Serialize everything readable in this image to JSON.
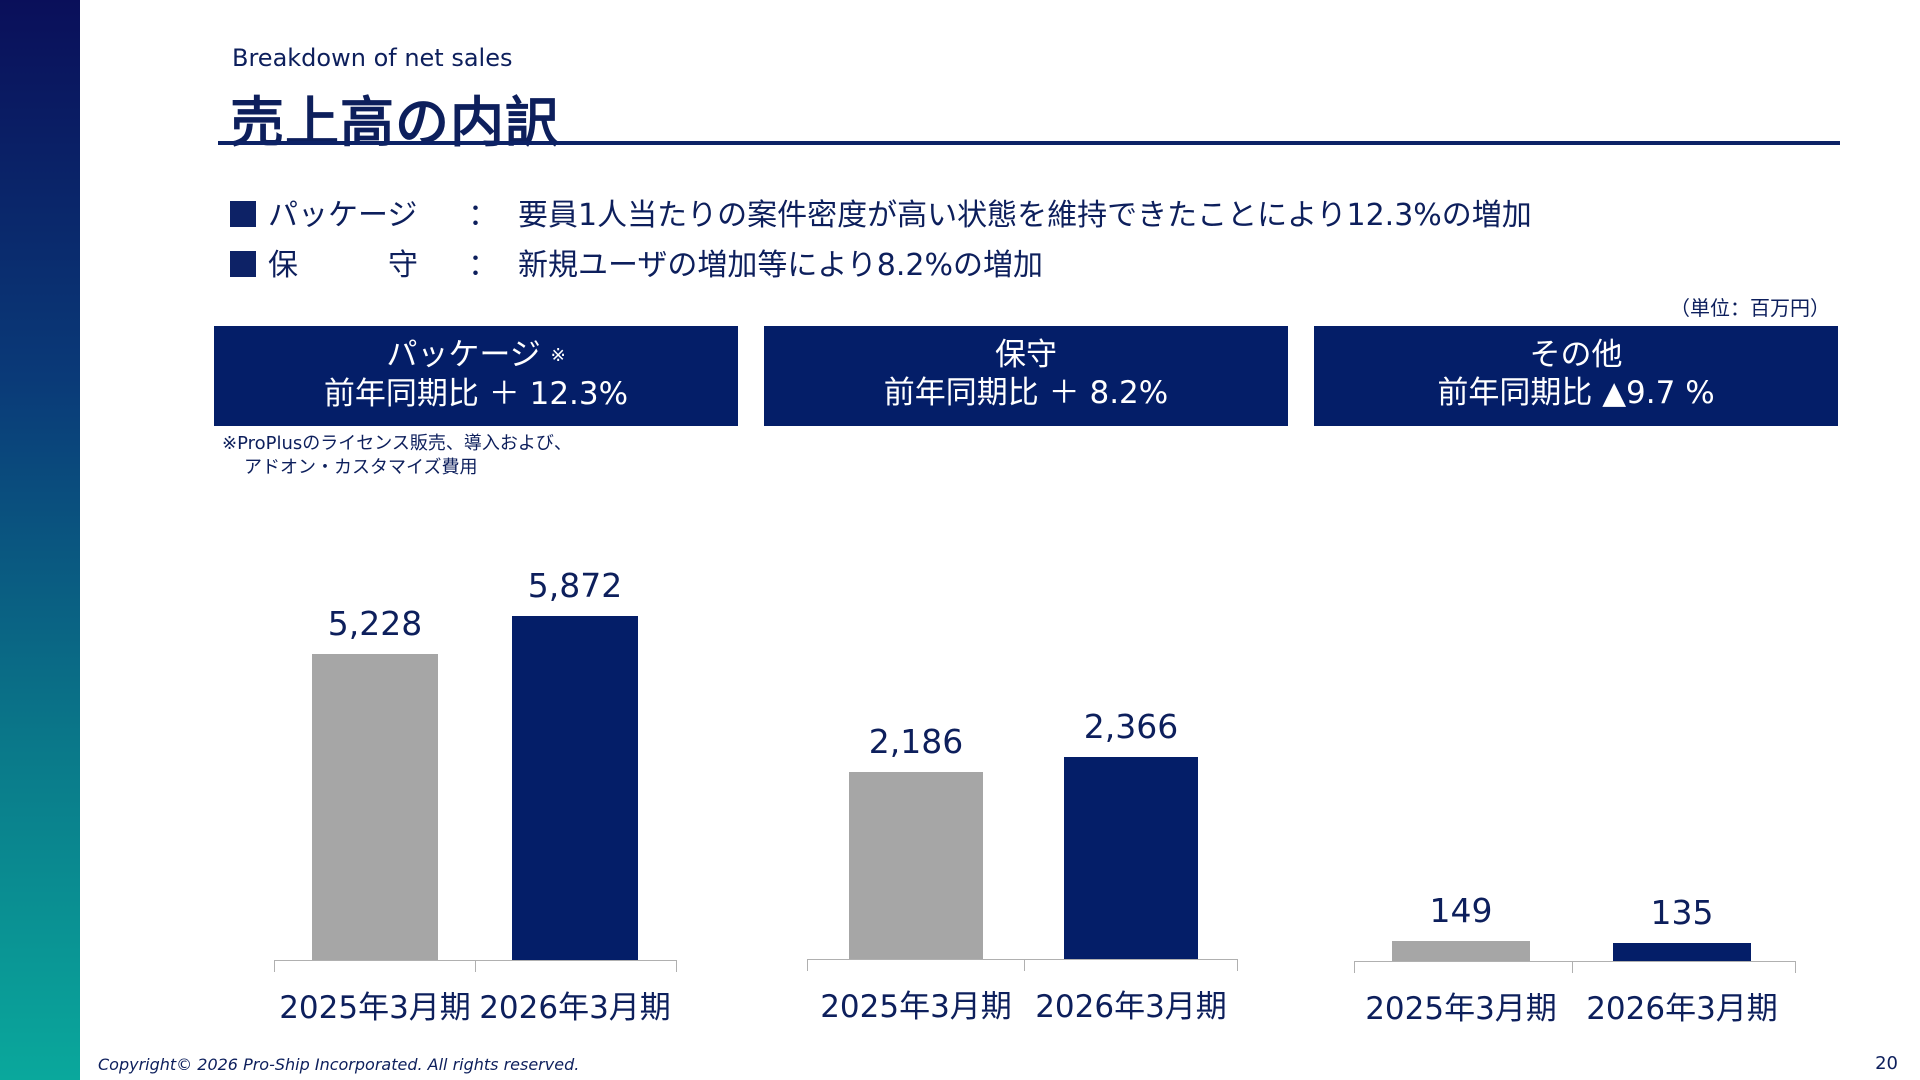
{
  "header": {
    "subtitle": "Breakdown of net sales",
    "title": "売上高の内訳"
  },
  "points": [
    {
      "label": "パッケージ",
      "colon": "：",
      "text": "要員1人当たりの案件密度が高い状態を維持できたことにより12.3%の増加"
    },
    {
      "label": "保　　　守",
      "colon": "：",
      "text": "新規ユーザの増加等により8.2%の増加"
    }
  ],
  "unit": "（単位：百万円）",
  "boxes": [
    {
      "name": "パッケージ",
      "mark": "※",
      "change": "前年同期比 ＋ 12.3%"
    },
    {
      "name": "保守",
      "mark": "",
      "change": "前年同期比 ＋ 8.2%"
    },
    {
      "name": "その他",
      "mark": "",
      "change": "前年同期比 ▲9.7 %"
    }
  ],
  "note": {
    "line1": "※ProPlusのライセンス販売、導入および、",
    "line2": "アドオン・カスタマイズ費用"
  },
  "colors": {
    "previous": "#a6a6a6",
    "current": "#041e68"
  },
  "chart_data": [
    {
      "type": "bar",
      "title": "パッケージ",
      "categories": [
        "2025年3月期",
        "2026年3月期"
      ],
      "values": [
        5228,
        5872
      ],
      "value_labels": [
        "5,228",
        "5,872"
      ]
    },
    {
      "type": "bar",
      "title": "保守",
      "categories": [
        "2025年3月期",
        "2026年3月期"
      ],
      "values": [
        2186,
        2366
      ],
      "value_labels": [
        "2,186",
        "2,366"
      ]
    },
    {
      "type": "bar",
      "title": "その他",
      "categories": [
        "2025年3月期",
        "2026年3月期"
      ],
      "values": [
        149,
        135
      ],
      "value_labels": [
        "149",
        "135"
      ]
    }
  ],
  "footer": {
    "copyright": "Copyright© 2026 Pro-Ship Incorporated. All rights reserved.",
    "page": "20"
  }
}
